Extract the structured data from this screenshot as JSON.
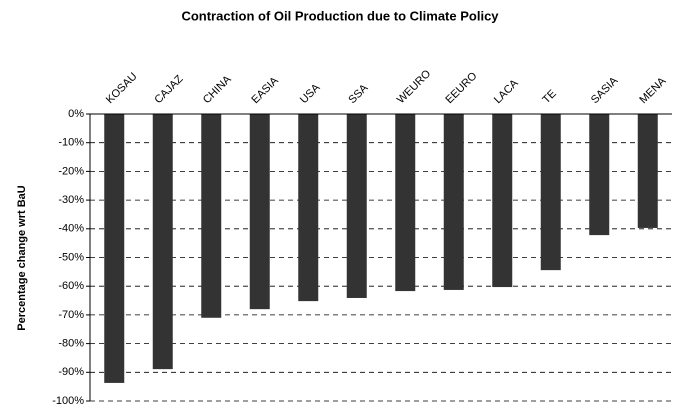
{
  "chart_data": {
    "type": "bar",
    "title": "Contraction of Oil Production due to Climate Policy",
    "y_label": "Percentage change wrt BaU",
    "categories": [
      "KOSAU",
      "CAJAZ",
      "CHINA",
      "EASIA",
      "USA",
      "SSA",
      "WEURO",
      "EEURO",
      "LACA",
      "TE",
      "SASIA",
      "MENA"
    ],
    "values": [
      -93.7,
      -88.9,
      -71,
      -68,
      -65.2,
      -64.1,
      -61.7,
      -61.3,
      -60.3,
      -54.4,
      -42.2,
      -39.7
    ],
    "color": "#333333",
    "ylim": [
      -100,
      0
    ],
    "yticks": [
      {
        "value": 0,
        "label": "0%"
      },
      {
        "value": -10,
        "label": "-10%"
      },
      {
        "value": -20,
        "label": "-20%"
      },
      {
        "value": -30,
        "label": "-30%"
      },
      {
        "value": -40,
        "label": "-40%"
      },
      {
        "value": -50,
        "label": "-50%"
      },
      {
        "value": -60,
        "label": "-60%"
      },
      {
        "value": -70,
        "label": "-70%"
      },
      {
        "value": -80,
        "label": "-80%"
      },
      {
        "value": -90,
        "label": "-90%"
      },
      {
        "value": -100,
        "label": "-100%"
      }
    ],
    "grid": true
  }
}
